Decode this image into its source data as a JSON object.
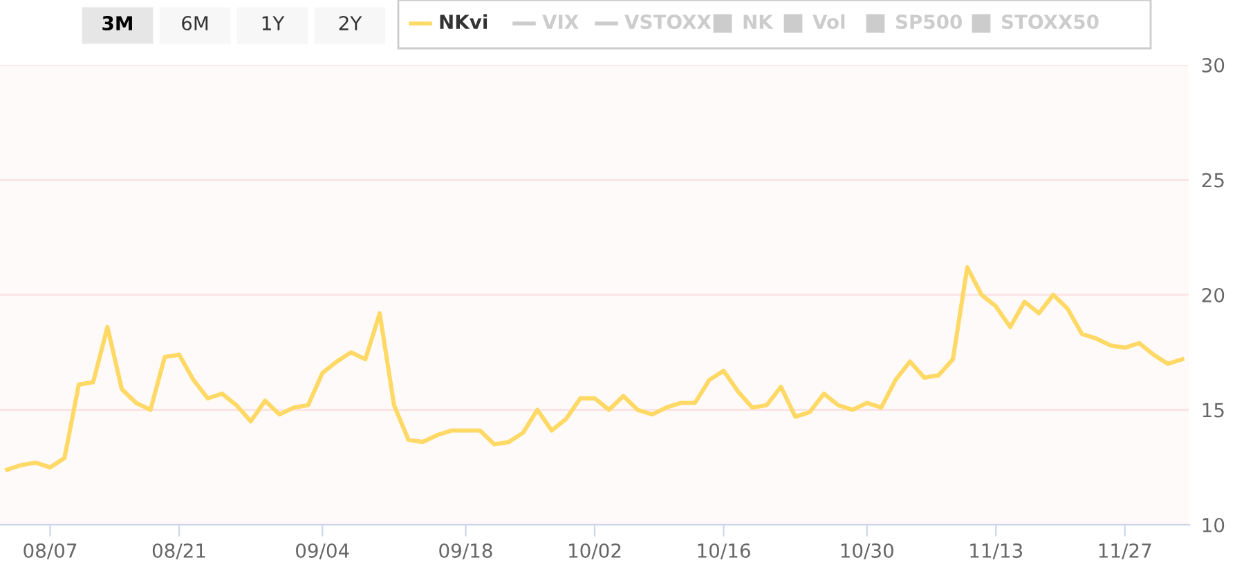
{
  "chart_data": {
    "type": "line",
    "categories": [
      null,
      null,
      null,
      "08/07",
      null,
      null,
      null,
      null,
      null,
      null,
      null,
      null,
      "08/21",
      null,
      null,
      null,
      null,
      null,
      null,
      null,
      null,
      null,
      "09/04",
      null,
      null,
      null,
      null,
      null,
      null,
      null,
      null,
      null,
      "09/18",
      null,
      null,
      null,
      null,
      null,
      null,
      null,
      null,
      "10/02",
      null,
      null,
      null,
      null,
      null,
      null,
      null,
      null,
      "10/16",
      null,
      null,
      null,
      null,
      null,
      null,
      null,
      null,
      null,
      "10/30",
      null,
      null,
      null,
      null,
      null,
      null,
      null,
      null,
      "11/13",
      null,
      null,
      null,
      null,
      null,
      null,
      null,
      null,
      "11/27",
      null,
      null,
      null,
      null
    ],
    "series": [
      {
        "name": "NKvi",
        "color": "#ffd966",
        "values": [
          12.4,
          12.6,
          12.7,
          12.5,
          12.9,
          16.1,
          16.2,
          18.6,
          15.9,
          15.3,
          15.0,
          17.3,
          17.4,
          16.3,
          15.5,
          15.7,
          15.2,
          14.5,
          15.4,
          14.8,
          15.1,
          15.2,
          16.6,
          17.1,
          17.5,
          17.2,
          19.2,
          15.2,
          13.7,
          13.6,
          13.9,
          14.1,
          14.1,
          14.1,
          13.5,
          13.6,
          14.0,
          15.0,
          14.1,
          14.6,
          15.5,
          15.5,
          15.0,
          15.6,
          15.0,
          14.8,
          15.1,
          15.3,
          15.3,
          16.3,
          16.7,
          15.8,
          15.1,
          15.2,
          16.0,
          14.7,
          14.9,
          15.7,
          15.2,
          15.0,
          15.3,
          15.1,
          16.3,
          17.1,
          16.4,
          16.5,
          17.2,
          21.2,
          20.0,
          19.5,
          18.6,
          19.7,
          19.2,
          20.0,
          19.4,
          18.3,
          18.1,
          17.8,
          17.7,
          17.9,
          17.4,
          17.0,
          17.2
        ]
      }
    ],
    "ylim": [
      10,
      30
    ],
    "yticks": [
      10,
      15,
      20,
      25,
      30
    ],
    "grid": "y",
    "legend": "top",
    "marker": "none",
    "line_style": "solid",
    "annotations": [
      "3M",
      "6M",
      "1Y",
      "2Y",
      "VIX",
      "VSTOXX",
      "NK",
      "Vol",
      "SP500",
      "STOXX50"
    ]
  }
}
